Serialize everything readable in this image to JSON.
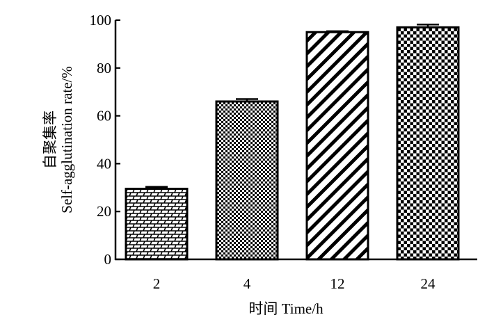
{
  "chart_data": {
    "type": "bar",
    "categories": [
      "2",
      "4",
      "12",
      "24"
    ],
    "values": [
      29.5,
      66,
      95,
      97
    ],
    "errors": [
      0.8,
      1.0,
      0.4,
      1.2
    ],
    "xlabel": "时间  Time/h",
    "ylabel_line1": "自聚集率",
    "ylabel_line2": "Self-agglutination rate/%",
    "ylim": [
      0,
      100
    ],
    "yticks": [
      0,
      20,
      40,
      60,
      80,
      100
    ],
    "patterns": [
      "brick",
      "fine-checker",
      "diagonal-stripes",
      "checker"
    ],
    "colors": {
      "ink": "#000000",
      "background": "#ffffff"
    }
  }
}
